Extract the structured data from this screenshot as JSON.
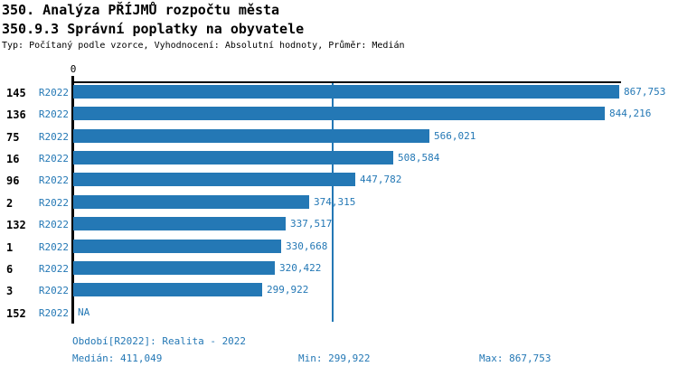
{
  "header": {
    "title1": "350. Analýza PŘÍJMŮ rozpočtu města",
    "title2": "350.9.3 Správní poplatky na obyvatele",
    "meta": "Typ: Počítaný podle vzorce, Vyhodnocení: Absolutní hodnoty, Průměr: Medián"
  },
  "chart_data": {
    "type": "bar",
    "orientation": "horizontal",
    "axis_zero_label": "0",
    "xmax": 867753,
    "median_value": 411049,
    "grid": false,
    "legend": "none",
    "colors": {
      "bar": "#2478b5",
      "blue_text": "#2478b5",
      "axis": "#000000"
    },
    "rows": [
      {
        "id": "145",
        "period": "R2022",
        "value": 867753,
        "label": "867,753"
      },
      {
        "id": "136",
        "period": "R2022",
        "value": 844216,
        "label": "844,216"
      },
      {
        "id": "75",
        "period": "R2022",
        "value": 566021,
        "label": "566,021"
      },
      {
        "id": "16",
        "period": "R2022",
        "value": 508584,
        "label": "508,584"
      },
      {
        "id": "96",
        "period": "R2022",
        "value": 447782,
        "label": "447,782"
      },
      {
        "id": "2",
        "period": "R2022",
        "value": 374315,
        "label": "374,315"
      },
      {
        "id": "132",
        "period": "R2022",
        "value": 337517,
        "label": "337,517"
      },
      {
        "id": "1",
        "period": "R2022",
        "value": 330668,
        "label": "330,668"
      },
      {
        "id": "6",
        "period": "R2022",
        "value": 320422,
        "label": "320,422"
      },
      {
        "id": "3",
        "period": "R2022",
        "value": 299922,
        "label": "299,922"
      },
      {
        "id": "152",
        "period": "R2022",
        "value": null,
        "label": "NA"
      }
    ]
  },
  "footer": {
    "period_line": "Období[R2022]: Realita - 2022",
    "median": "Medián: 411,049",
    "min": "Min: 299,922",
    "max": "Max: 867,753"
  }
}
